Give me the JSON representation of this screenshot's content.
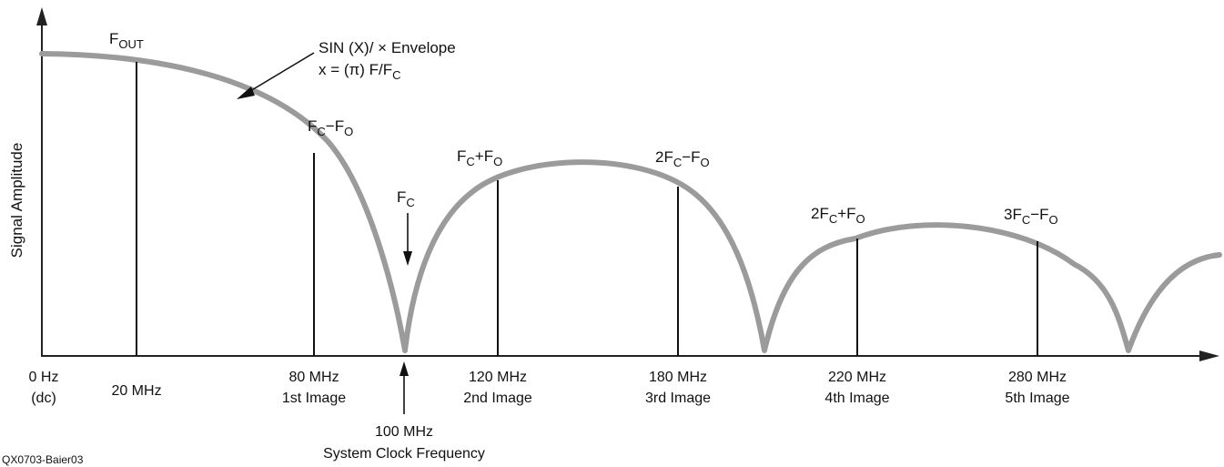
{
  "y_axis_label": "Signal Amplitude",
  "envelope_note": {
    "line1": "SIN (X)/ × Envelope",
    "line2": "x = (π) F/F",
    "line2_sub": "C"
  },
  "components": [
    {
      "main": "F",
      "sub": "OUT",
      "tail": "",
      "tail_sub": ""
    },
    {
      "main": "F",
      "sub": "C",
      "tail": "−F",
      "tail_sub": "O"
    },
    {
      "main": "F",
      "sub": "C",
      "tail": "+F",
      "tail_sub": "O"
    },
    {
      "main": "2F",
      "sub": "C",
      "tail": "−F",
      "tail_sub": "O"
    },
    {
      "main": "2F",
      "sub": "C",
      "tail": "+F",
      "tail_sub": "O"
    },
    {
      "main": "3F",
      "sub": "C",
      "tail": "−F",
      "tail_sub": "O"
    }
  ],
  "clock_marker": {
    "main": "F",
    "sub": "C"
  },
  "x_ticks": [
    {
      "line1": "0 Hz",
      "line2": "(dc)"
    },
    {
      "line1": "20 MHz",
      "line2": ""
    },
    {
      "line1": "80 MHz",
      "line2": "1st Image"
    },
    {
      "line1": "120 MHz",
      "line2": "2nd Image"
    },
    {
      "line1": "180 MHz",
      "line2": "3rd Image"
    },
    {
      "line1": "220 MHz",
      "line2": "4th Image"
    },
    {
      "line1": "280 MHz",
      "line2": "5th Image"
    }
  ],
  "clock_tick": {
    "line1": "100 MHz",
    "line2": "System Clock Frequency"
  },
  "figure_id": "QX0703-Baier03",
  "colors": {
    "envelope": "#9b9b9b",
    "lines": "#111111"
  }
}
